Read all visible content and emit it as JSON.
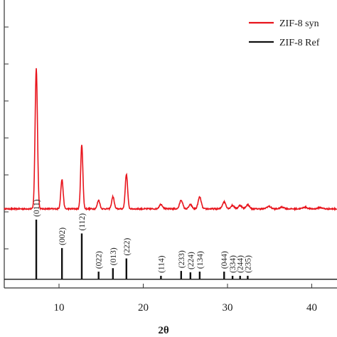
{
  "chart_data": {
    "type": "line",
    "title": "",
    "xlabel": "2θ",
    "ylabel": "",
    "xlim": [
      3.5,
      43
    ],
    "x_ticks": [
      10,
      20,
      30,
      40
    ],
    "grid": false,
    "legend_position": "top-right",
    "series": [
      {
        "name": "ZIF-8 syn",
        "color": "#e8141c",
        "baseline": 0.78,
        "peaks": [
          {
            "x": 7.3,
            "h": 4.05,
            "w": 0.14
          },
          {
            "x": 10.35,
            "h": 0.84,
            "w": 0.14
          },
          {
            "x": 12.7,
            "h": 1.85,
            "w": 0.13
          },
          {
            "x": 14.7,
            "h": 0.25,
            "w": 0.15
          },
          {
            "x": 16.4,
            "h": 0.35,
            "w": 0.15
          },
          {
            "x": 18.0,
            "h": 1.0,
            "w": 0.14
          },
          {
            "x": 22.1,
            "h": 0.13,
            "w": 0.2
          },
          {
            "x": 24.5,
            "h": 0.25,
            "w": 0.18
          },
          {
            "x": 25.6,
            "h": 0.12,
            "w": 0.18
          },
          {
            "x": 26.7,
            "h": 0.34,
            "w": 0.18
          },
          {
            "x": 29.6,
            "h": 0.2,
            "w": 0.2
          },
          {
            "x": 30.6,
            "h": 0.1,
            "w": 0.2
          },
          {
            "x": 31.5,
            "h": 0.1,
            "w": 0.2
          },
          {
            "x": 32.4,
            "h": 0.12,
            "w": 0.2
          },
          {
            "x": 34.9,
            "h": 0.07,
            "w": 0.25
          },
          {
            "x": 36.5,
            "h": 0.05,
            "w": 0.25
          },
          {
            "x": 39.2,
            "h": 0.05,
            "w": 0.25
          },
          {
            "x": 41.0,
            "h": 0.04,
            "w": 0.25
          }
        ]
      },
      {
        "name": "ZIF-8 Ref",
        "color": "#111111",
        "baseline": -1.25,
        "peaks": [
          {
            "x": 7.3,
            "h": 1.72,
            "hkl": "(011)"
          },
          {
            "x": 10.35,
            "h": 0.9,
            "hkl": "(002)"
          },
          {
            "x": 12.7,
            "h": 1.32,
            "hkl": "(112)"
          },
          {
            "x": 14.7,
            "h": 0.22,
            "hkl": "(022)"
          },
          {
            "x": 16.4,
            "h": 0.32,
            "hkl": "(013)"
          },
          {
            "x": 18.0,
            "h": 0.6,
            "hkl": "(222)"
          },
          {
            "x": 22.1,
            "h": 0.1,
            "hkl": "(114)"
          },
          {
            "x": 24.5,
            "h": 0.24,
            "hkl": "(233)"
          },
          {
            "x": 25.6,
            "h": 0.2,
            "hkl": "(224)"
          },
          {
            "x": 26.7,
            "h": 0.22,
            "hkl": "(134)"
          },
          {
            "x": 29.6,
            "h": 0.22,
            "hkl": "(044)"
          },
          {
            "x": 30.6,
            "h": 0.1,
            "hkl": "(334)"
          },
          {
            "x": 31.5,
            "h": 0.1,
            "hkl": "(244)"
          },
          {
            "x": 32.4,
            "h": 0.1,
            "hkl": "(235)"
          }
        ]
      }
    ]
  }
}
